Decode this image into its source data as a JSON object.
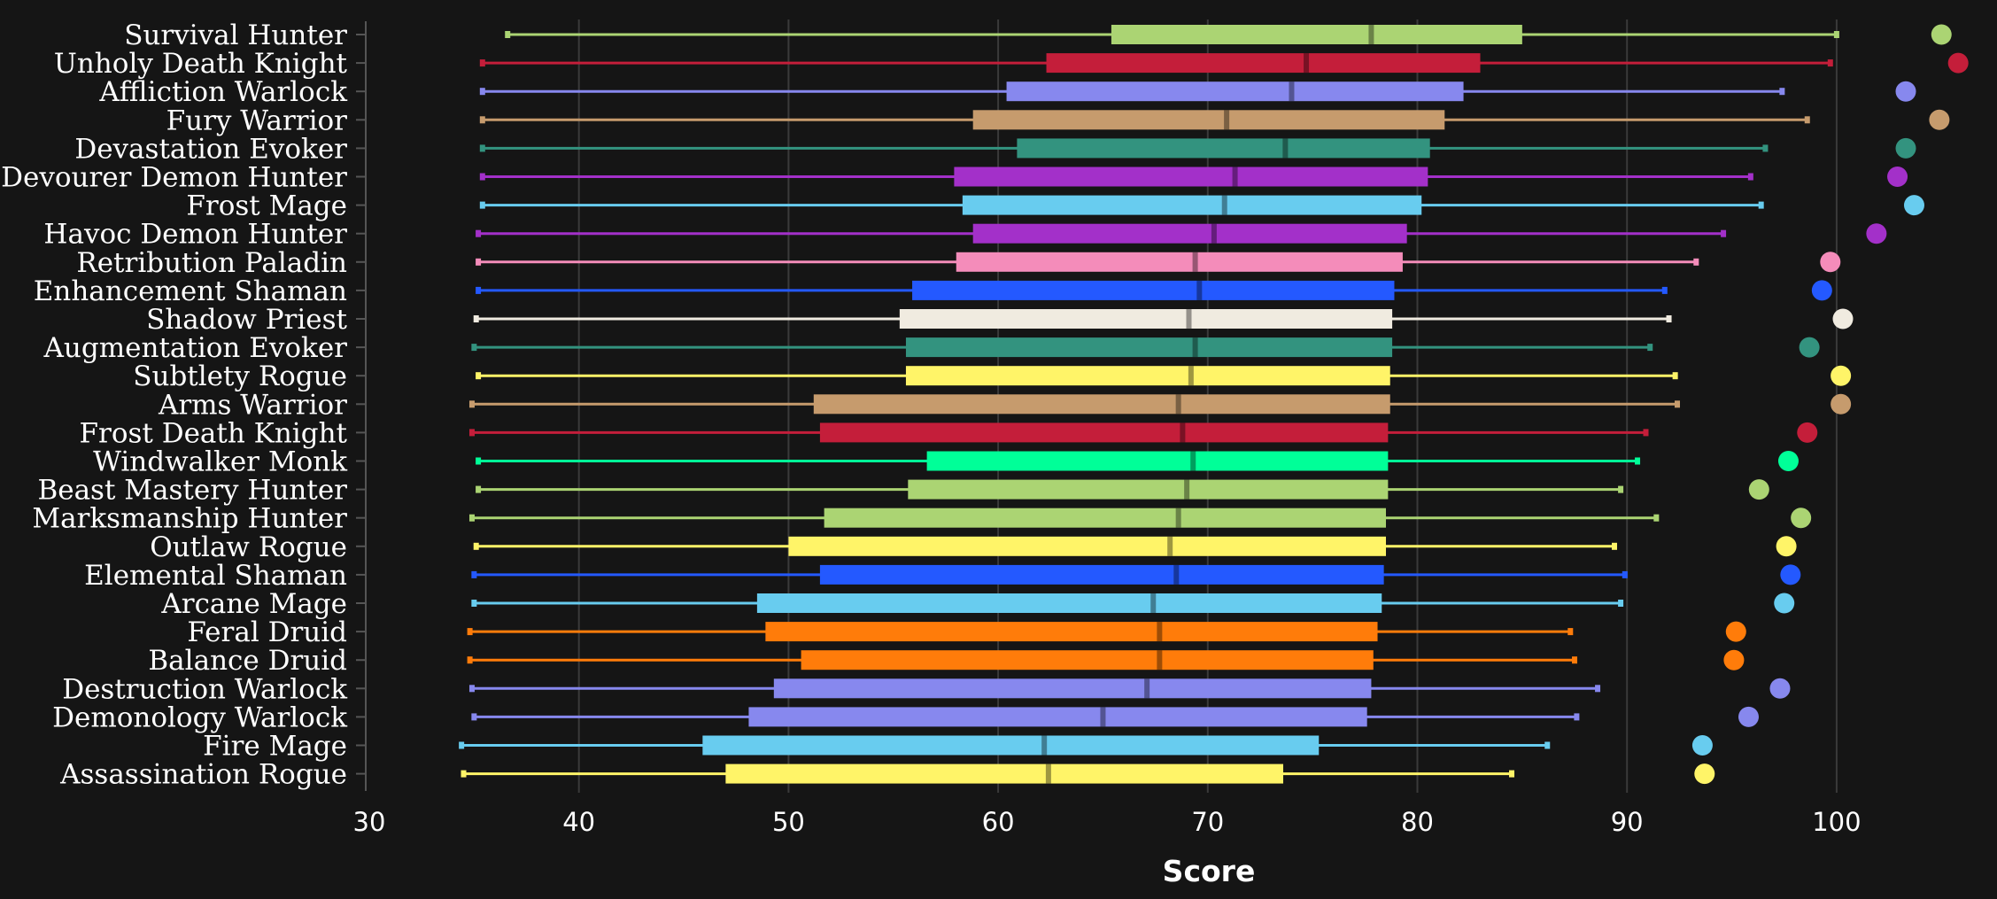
{
  "chart_data": {
    "type": "box",
    "title": "",
    "xlabel": "Score",
    "ylabel": "",
    "xlim": [
      30,
      108
    ],
    "xticks": [
      30,
      40,
      50,
      60,
      70,
      80,
      90,
      100
    ],
    "grid": "vertical",
    "legend": "none",
    "background": "#151515",
    "series": [
      {
        "name": "Survival Hunter",
        "color": "#abd473",
        "min": 36.6,
        "q1": 65.4,
        "median": 77.8,
        "q3": 85.0,
        "max": 100.0,
        "outlier": 105.0
      },
      {
        "name": "Unholy Death Knight",
        "color": "#c41e3a",
        "min": 35.4,
        "q1": 62.3,
        "median": 74.7,
        "q3": 83.0,
        "max": 99.7,
        "outlier": 105.8
      },
      {
        "name": "Affliction Warlock",
        "color": "#8788ee",
        "min": 35.4,
        "q1": 60.4,
        "median": 74.0,
        "q3": 82.2,
        "max": 97.4,
        "outlier": 103.3
      },
      {
        "name": "Fury Warrior",
        "color": "#c69b6d",
        "min": 35.4,
        "q1": 58.8,
        "median": 70.9,
        "q3": 81.3,
        "max": 98.6,
        "outlier": 104.9
      },
      {
        "name": "Devastation Evoker",
        "color": "#33937f",
        "min": 35.4,
        "q1": 60.9,
        "median": 73.7,
        "q3": 80.6,
        "max": 96.6,
        "outlier": 103.3
      },
      {
        "name": "Devourer Demon Hunter",
        "color": "#a330c9",
        "min": 35.4,
        "q1": 57.9,
        "median": 71.3,
        "q3": 80.5,
        "max": 95.9,
        "outlier": 102.9
      },
      {
        "name": "Frost Mage",
        "color": "#68ccef",
        "min": 35.4,
        "q1": 58.3,
        "median": 70.8,
        "q3": 80.2,
        "max": 96.4,
        "outlier": 103.7
      },
      {
        "name": "Havoc Demon Hunter",
        "color": "#a330c9",
        "min": 35.2,
        "q1": 58.8,
        "median": 70.3,
        "q3": 79.5,
        "max": 94.6,
        "outlier": 101.9
      },
      {
        "name": "Retribution Paladin",
        "color": "#f48cba",
        "min": 35.2,
        "q1": 58.0,
        "median": 69.4,
        "q3": 79.3,
        "max": 93.3,
        "outlier": 99.7
      },
      {
        "name": "Enhancement Shaman",
        "color": "#2459ff",
        "min": 35.2,
        "q1": 55.9,
        "median": 69.6,
        "q3": 78.9,
        "max": 91.8,
        "outlier": 99.3
      },
      {
        "name": "Shadow Priest",
        "color": "#f0ebe0",
        "min": 35.1,
        "q1": 55.3,
        "median": 69.1,
        "q3": 78.8,
        "max": 92.0,
        "outlier": 100.3
      },
      {
        "name": "Augmentation Evoker",
        "color": "#33937f",
        "min": 35.0,
        "q1": 55.6,
        "median": 69.4,
        "q3": 78.8,
        "max": 91.1,
        "outlier": 98.7
      },
      {
        "name": "Subtlety Rogue",
        "color": "#fff468",
        "min": 35.2,
        "q1": 55.6,
        "median": 69.2,
        "q3": 78.7,
        "max": 92.3,
        "outlier": 100.2
      },
      {
        "name": "Arms Warrior",
        "color": "#c69b6d",
        "min": 34.9,
        "q1": 51.2,
        "median": 68.6,
        "q3": 78.7,
        "max": 92.4,
        "outlier": 100.2
      },
      {
        "name": "Frost Death Knight",
        "color": "#c41e3a",
        "min": 34.9,
        "q1": 51.5,
        "median": 68.8,
        "q3": 78.6,
        "max": 90.9,
        "outlier": 98.6
      },
      {
        "name": "Windwalker Monk",
        "color": "#00ff98",
        "min": 35.2,
        "q1": 56.6,
        "median": 69.3,
        "q3": 78.6,
        "max": 90.5,
        "outlier": 97.7
      },
      {
        "name": "Beast Mastery Hunter",
        "color": "#abd473",
        "min": 35.2,
        "q1": 55.7,
        "median": 69.0,
        "q3": 78.6,
        "max": 89.7,
        "outlier": 96.3
      },
      {
        "name": "Marksmanship Hunter",
        "color": "#abd473",
        "min": 34.9,
        "q1": 51.7,
        "median": 68.6,
        "q3": 78.5,
        "max": 91.4,
        "outlier": 98.3
      },
      {
        "name": "Outlaw Rogue",
        "color": "#fff468",
        "min": 35.1,
        "q1": 50.0,
        "median": 68.2,
        "q3": 78.5,
        "max": 89.4,
        "outlier": 97.6
      },
      {
        "name": "Elemental Shaman",
        "color": "#2459ff",
        "min": 35.0,
        "q1": 51.5,
        "median": 68.5,
        "q3": 78.4,
        "max": 89.9,
        "outlier": 97.8
      },
      {
        "name": "Arcane Mage",
        "color": "#68ccef",
        "min": 35.0,
        "q1": 48.5,
        "median": 67.4,
        "q3": 78.3,
        "max": 89.7,
        "outlier": 97.5
      },
      {
        "name": "Feral Druid",
        "color": "#ff7c0a",
        "min": 34.8,
        "q1": 48.9,
        "median": 67.7,
        "q3": 78.1,
        "max": 87.3,
        "outlier": 95.2
      },
      {
        "name": "Balance Druid",
        "color": "#ff7c0a",
        "min": 34.8,
        "q1": 50.6,
        "median": 67.7,
        "q3": 77.9,
        "max": 87.5,
        "outlier": 95.1
      },
      {
        "name": "Destruction Warlock",
        "color": "#8788ee",
        "min": 34.9,
        "q1": 49.3,
        "median": 67.1,
        "q3": 77.8,
        "max": 88.6,
        "outlier": 97.3
      },
      {
        "name": "Demonology Warlock",
        "color": "#8788ee",
        "min": 35.0,
        "q1": 48.1,
        "median": 65.0,
        "q3": 77.6,
        "max": 87.6,
        "outlier": 95.8
      },
      {
        "name": "Fire Mage",
        "color": "#68ccef",
        "min": 34.4,
        "q1": 45.9,
        "median": 62.2,
        "q3": 75.3,
        "max": 86.2,
        "outlier": 93.6
      },
      {
        "name": "Assassination Rogue",
        "color": "#fff468",
        "min": 34.5,
        "q1": 47.0,
        "median": 62.4,
        "q3": 73.6,
        "max": 84.5,
        "outlier": 93.7
      }
    ]
  }
}
